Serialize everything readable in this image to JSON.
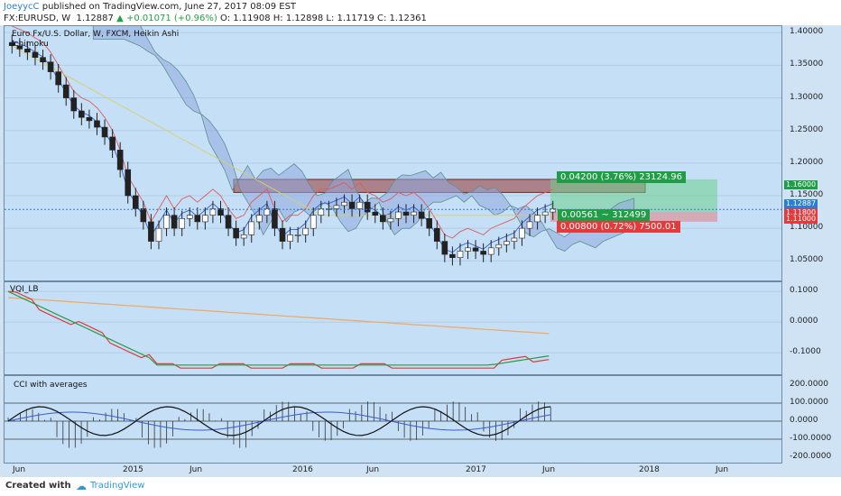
{
  "header": {
    "author": "JoeyycC",
    "published": "published on TradingView.com, June 27, 2017 08:09 EST",
    "symbol": "FX:EURUSD, W",
    "last": "1.12887",
    "change": "▲ +0.01071 (+0.96%)",
    "ohlc": "O: 1.11908  H: 1.12898  L: 1.11719  C: 1.12361"
  },
  "main": {
    "title": "Euro Fx/U.S. Dollar, W, FXCM, Heikin Ashi",
    "indicator": "Ichimoku",
    "target_box": "0.04200 (3.76%) 23124.96",
    "mid_box": "0.00561 ~ 312499",
    "stop_box": "0.00800 (0.72%) 7500.01",
    "price_tags": [
      "1.16000",
      "1.12887",
      "1.11800",
      "1.11000"
    ]
  },
  "vqi": {
    "title": "VQI_LB"
  },
  "cci": {
    "title": "CCI with averages"
  },
  "footer": {
    "created": "Created with",
    "brand": "TradingView"
  },
  "colors": {
    "up": "#22a145",
    "down": "#e23a3a",
    "cloud": "#8fa7de",
    "zone": "#a05050"
  },
  "chart_data": [
    {
      "type": "candlestick",
      "title": "Euro Fx/U.S. Dollar, W, FXCM, Heikin Ashi",
      "ylim": [
        1.02,
        1.41
      ],
      "yticks": [
        1.4,
        1.35,
        1.3,
        1.25,
        1.2,
        1.15,
        1.1,
        1.05
      ],
      "x_tick_labels": [
        "Jun",
        "2015",
        "Jun",
        "2016",
        "Jun",
        "2017",
        "Jun",
        "2018",
        "Jun"
      ],
      "close": [
        1.38,
        1.375,
        1.37,
        1.362,
        1.355,
        1.34,
        1.32,
        1.3,
        1.28,
        1.27,
        1.265,
        1.255,
        1.24,
        1.22,
        1.19,
        1.15,
        1.13,
        1.11,
        1.08,
        1.1,
        1.12,
        1.1,
        1.115,
        1.12,
        1.11,
        1.12,
        1.13,
        1.12,
        1.1,
        1.085,
        1.09,
        1.11,
        1.12,
        1.13,
        1.1,
        1.08,
        1.09,
        1.09,
        1.1,
        1.12,
        1.13,
        1.13,
        1.135,
        1.14,
        1.13,
        1.14,
        1.125,
        1.12,
        1.11,
        1.115,
        1.125,
        1.12,
        1.125,
        1.115,
        1.1,
        1.08,
        1.06,
        1.055,
        1.065,
        1.07,
        1.065,
        1.06,
        1.07,
        1.075,
        1.08,
        1.085,
        1.1,
        1.11,
        1.12,
        1.125,
        1.13
      ]
    },
    {
      "type": "line",
      "title": "VQI_LB",
      "ylim": [
        -0.17,
        0.13
      ],
      "yticks": [
        0.1,
        0.0,
        -0.1
      ]
    },
    {
      "type": "line",
      "title": "CCI with averages",
      "ylim": [
        -230,
        250
      ],
      "yticks": [
        200,
        100,
        0,
        -100,
        -200
      ]
    }
  ]
}
